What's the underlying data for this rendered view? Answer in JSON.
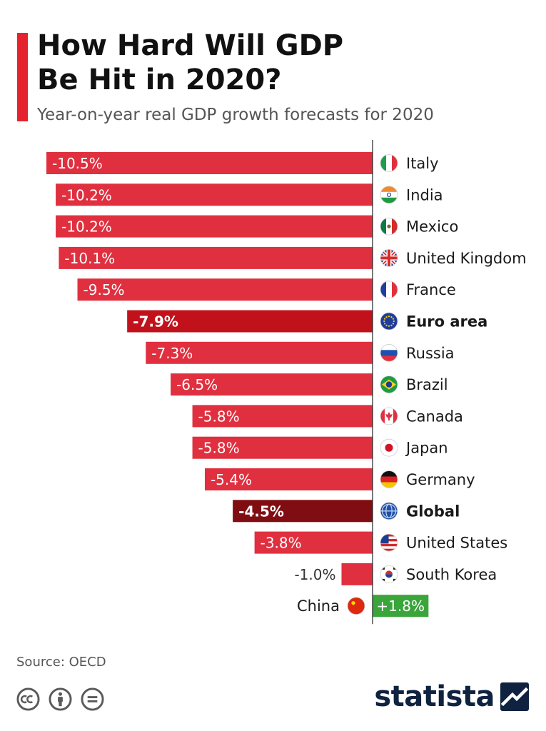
{
  "header": {
    "title_line1": "How Hard Will GDP",
    "title_line2": "Be Hit in 2020?",
    "subtitle": "Year-on-year real GDP growth forecasts for 2020"
  },
  "colors": {
    "accent": "#e5232e",
    "negative_bar": "#e0303f",
    "highlight_euro": "#c1121c",
    "highlight_global": "#800d12",
    "positive_bar": "#3aa53a",
    "axis": "#222222"
  },
  "chart_data": {
    "type": "bar",
    "orientation": "horizontal",
    "title": "How Hard Will GDP Be Hit in 2020?",
    "subtitle": "Year-on-year real GDP growth forecasts for 2020",
    "unit": "%",
    "categories": [
      "Italy",
      "India",
      "Mexico",
      "United Kingdom",
      "France",
      "Euro area",
      "Russia",
      "Brazil",
      "Canada",
      "Japan",
      "Germany",
      "Global",
      "United States",
      "South Korea",
      "China"
    ],
    "values": [
      -10.5,
      -10.2,
      -10.2,
      -10.1,
      -9.5,
      -7.9,
      -7.3,
      -6.5,
      -5.8,
      -5.8,
      -5.4,
      -4.5,
      -3.8,
      -1.0,
      1.8
    ],
    "labels": [
      "-10.5%",
      "-10.2%",
      "-10.2%",
      "-10.1%",
      "-9.5%",
      "-7.9%",
      "-7.3%",
      "-6.5%",
      "-5.8%",
      "-5.8%",
      "-5.4%",
      "-4.5%",
      "-3.8%",
      "-1.0%",
      "+1.8%"
    ],
    "highlighted": [
      "Euro area",
      "Global"
    ],
    "flag_icons": [
      "italy-flag-icon",
      "india-flag-icon",
      "mexico-flag-icon",
      "uk-flag-icon",
      "france-flag-icon",
      "eu-flag-icon",
      "russia-flag-icon",
      "brazil-flag-icon",
      "canada-flag-icon",
      "japan-flag-icon",
      "germany-flag-icon",
      "globe-icon",
      "usa-flag-icon",
      "south-korea-flag-icon",
      "china-flag-icon"
    ],
    "grid": false,
    "legend": "none"
  },
  "footer": {
    "source": "Source: OECD",
    "license_icons": [
      "cc-icon",
      "by-person-icon",
      "nd-equal-icon"
    ],
    "brand": "statista"
  }
}
